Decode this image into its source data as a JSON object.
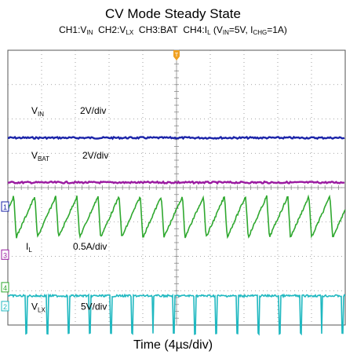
{
  "title": "CV Mode Steady State",
  "subtitle": {
    "ch1": "CH1:V",
    "ch1_sub": "IN",
    "ch2": "CH2:V",
    "ch2_sub": "LX",
    "ch3": "CH3:BAT",
    "ch4": "CH4:I",
    "ch4_sub": "L",
    "cond_open": "(V",
    "cond_vin_sub": "IN",
    "cond_vin": "=5V, I",
    "cond_ichg_sub": "CHG",
    "cond_ichg": "=1A)"
  },
  "xlabel": "Time (4µs/div)",
  "channel_markers": {
    "ch1": "1",
    "ch3": "3",
    "ch4": "4",
    "ch2": "2"
  },
  "trigger_marker": "T",
  "colors": {
    "vin": "#1a23a8",
    "bat": "#9a1aa0",
    "il": "#2fa82f",
    "vlx": "#1fb8c0",
    "grid": "#8a8a8a",
    "frame": "#555555"
  },
  "chart_data": {
    "type": "line",
    "title": "CV Mode Steady State",
    "xlabel": "Time (4µs/div)",
    "x_divisions": 10,
    "y_divisions": 8,
    "grid": true,
    "series": [
      {
        "name": "VIN",
        "label_main": "V",
        "label_sub": "IN",
        "scale": "2V/div",
        "shape": "flat",
        "level_div": 5.45
      },
      {
        "name": "VBAT",
        "label_main": "V",
        "label_sub": "BAT",
        "scale": "2V/div",
        "shape": "flat",
        "level_div": 4.15
      },
      {
        "name": "IL",
        "label_main": "I",
        "label_sub": "L",
        "scale": "0.5A/div",
        "shape": "sawtooth",
        "cycles": 16,
        "low_div": 2.55,
        "high_div": 3.75
      },
      {
        "name": "VLX",
        "label_main": "V",
        "label_sub": "LX",
        "scale": "5V/div",
        "shape": "pulse",
        "cycles": 16,
        "high_div": 0.85,
        "low_div": -0.25,
        "low_fraction": 0.07
      }
    ]
  }
}
